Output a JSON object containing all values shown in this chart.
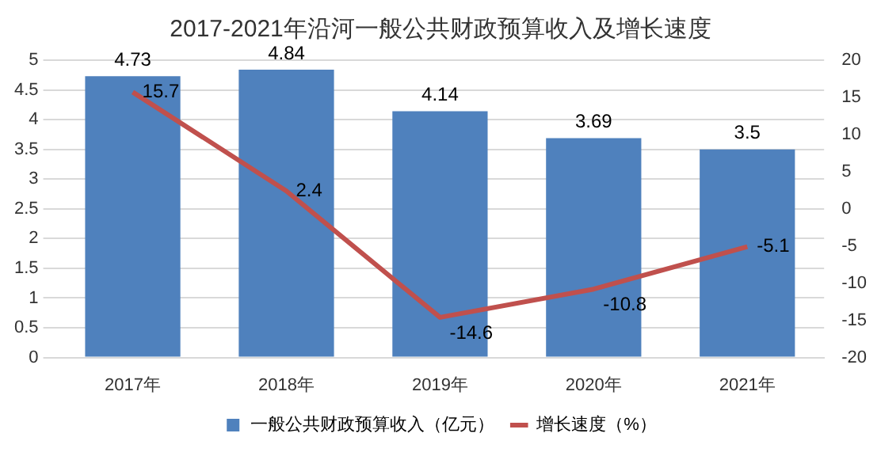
{
  "chart_data": {
    "type": "bar",
    "title": "2017-2021年沿河一般公共财政预算收入及增长速度",
    "categories": [
      "2017年",
      "2018年",
      "2019年",
      "2020年",
      "2021年"
    ],
    "series": [
      {
        "name": "一般公共财政预算收入（亿元）",
        "color": "#4f81bd",
        "values": [
          4.73,
          4.84,
          4.14,
          3.69,
          3.5
        ]
      },
      {
        "name": "增长速度（%）",
        "type": "line",
        "axis": "y2",
        "color": "#c0504d",
        "values": [
          15.7,
          2.4,
          -14.6,
          -10.8,
          -5.1
        ],
        "marker": "none"
      }
    ],
    "ylim": [
      0,
      5
    ],
    "yticks": [
      0,
      0.5,
      1,
      1.5,
      2,
      2.5,
      3,
      3.5,
      4,
      4.5,
      5
    ],
    "y2lim": [
      -20,
      20
    ],
    "y2ticks": [
      -20,
      -15,
      -10,
      -5,
      0,
      5,
      10,
      15,
      20
    ],
    "grid": "y",
    "legend": "bottom",
    "data_labels": true
  }
}
